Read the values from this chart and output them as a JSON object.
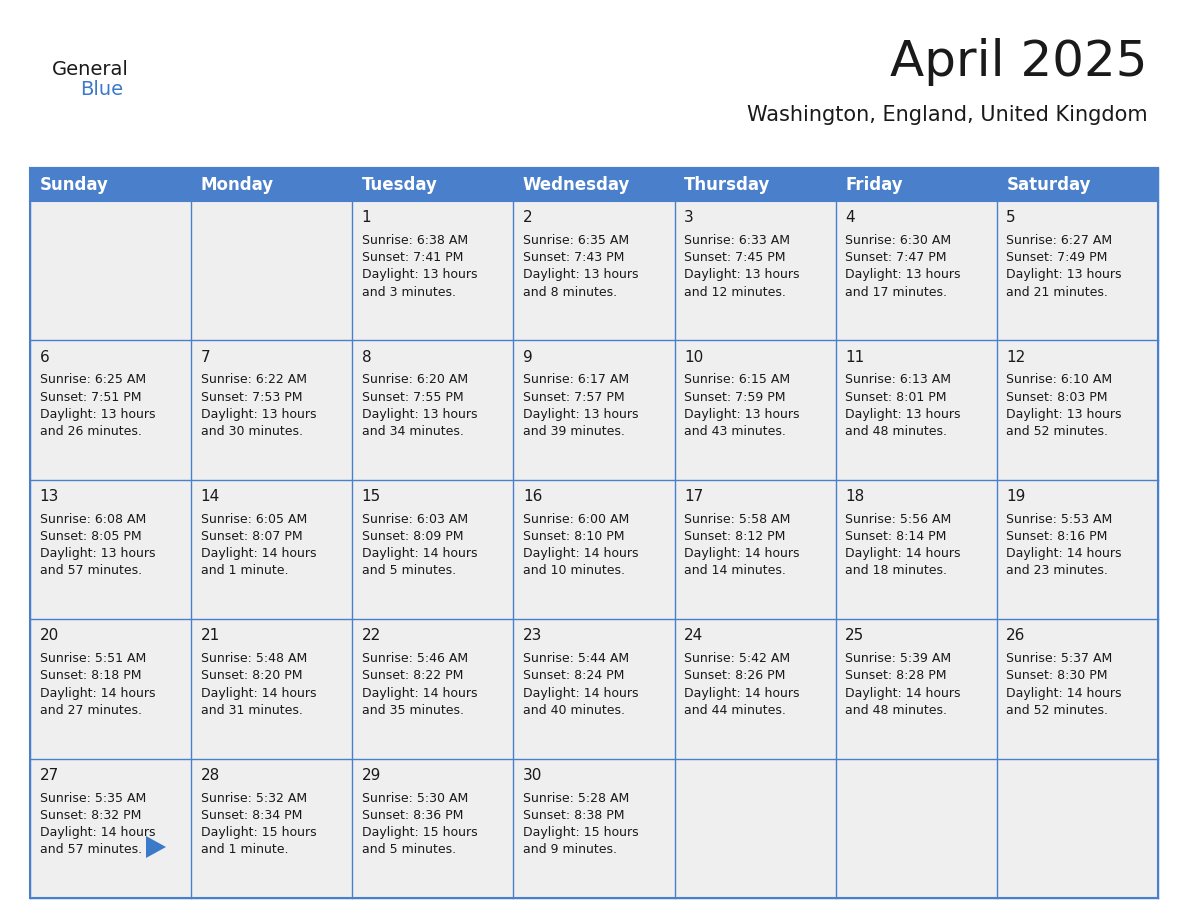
{
  "title": "April 2025",
  "subtitle": "Washington, England, United Kingdom",
  "header_bg": "#4a7fcb",
  "header_text_color": "#FFFFFF",
  "cell_bg": "#EFEFEF",
  "cell_bg_first_row": "#F5F5F5",
  "border_color": "#4a7fcb",
  "days_of_week": [
    "Sunday",
    "Monday",
    "Tuesday",
    "Wednesday",
    "Thursday",
    "Friday",
    "Saturday"
  ],
  "weeks": [
    [
      {
        "day": "",
        "info": ""
      },
      {
        "day": "",
        "info": ""
      },
      {
        "day": "1",
        "info": "Sunrise: 6:38 AM\nSunset: 7:41 PM\nDaylight: 13 hours\nand 3 minutes."
      },
      {
        "day": "2",
        "info": "Sunrise: 6:35 AM\nSunset: 7:43 PM\nDaylight: 13 hours\nand 8 minutes."
      },
      {
        "day": "3",
        "info": "Sunrise: 6:33 AM\nSunset: 7:45 PM\nDaylight: 13 hours\nand 12 minutes."
      },
      {
        "day": "4",
        "info": "Sunrise: 6:30 AM\nSunset: 7:47 PM\nDaylight: 13 hours\nand 17 minutes."
      },
      {
        "day": "5",
        "info": "Sunrise: 6:27 AM\nSunset: 7:49 PM\nDaylight: 13 hours\nand 21 minutes."
      }
    ],
    [
      {
        "day": "6",
        "info": "Sunrise: 6:25 AM\nSunset: 7:51 PM\nDaylight: 13 hours\nand 26 minutes."
      },
      {
        "day": "7",
        "info": "Sunrise: 6:22 AM\nSunset: 7:53 PM\nDaylight: 13 hours\nand 30 minutes."
      },
      {
        "day": "8",
        "info": "Sunrise: 6:20 AM\nSunset: 7:55 PM\nDaylight: 13 hours\nand 34 minutes."
      },
      {
        "day": "9",
        "info": "Sunrise: 6:17 AM\nSunset: 7:57 PM\nDaylight: 13 hours\nand 39 minutes."
      },
      {
        "day": "10",
        "info": "Sunrise: 6:15 AM\nSunset: 7:59 PM\nDaylight: 13 hours\nand 43 minutes."
      },
      {
        "day": "11",
        "info": "Sunrise: 6:13 AM\nSunset: 8:01 PM\nDaylight: 13 hours\nand 48 minutes."
      },
      {
        "day": "12",
        "info": "Sunrise: 6:10 AM\nSunset: 8:03 PM\nDaylight: 13 hours\nand 52 minutes."
      }
    ],
    [
      {
        "day": "13",
        "info": "Sunrise: 6:08 AM\nSunset: 8:05 PM\nDaylight: 13 hours\nand 57 minutes."
      },
      {
        "day": "14",
        "info": "Sunrise: 6:05 AM\nSunset: 8:07 PM\nDaylight: 14 hours\nand 1 minute."
      },
      {
        "day": "15",
        "info": "Sunrise: 6:03 AM\nSunset: 8:09 PM\nDaylight: 14 hours\nand 5 minutes."
      },
      {
        "day": "16",
        "info": "Sunrise: 6:00 AM\nSunset: 8:10 PM\nDaylight: 14 hours\nand 10 minutes."
      },
      {
        "day": "17",
        "info": "Sunrise: 5:58 AM\nSunset: 8:12 PM\nDaylight: 14 hours\nand 14 minutes."
      },
      {
        "day": "18",
        "info": "Sunrise: 5:56 AM\nSunset: 8:14 PM\nDaylight: 14 hours\nand 18 minutes."
      },
      {
        "day": "19",
        "info": "Sunrise: 5:53 AM\nSunset: 8:16 PM\nDaylight: 14 hours\nand 23 minutes."
      }
    ],
    [
      {
        "day": "20",
        "info": "Sunrise: 5:51 AM\nSunset: 8:18 PM\nDaylight: 14 hours\nand 27 minutes."
      },
      {
        "day": "21",
        "info": "Sunrise: 5:48 AM\nSunset: 8:20 PM\nDaylight: 14 hours\nand 31 minutes."
      },
      {
        "day": "22",
        "info": "Sunrise: 5:46 AM\nSunset: 8:22 PM\nDaylight: 14 hours\nand 35 minutes."
      },
      {
        "day": "23",
        "info": "Sunrise: 5:44 AM\nSunset: 8:24 PM\nDaylight: 14 hours\nand 40 minutes."
      },
      {
        "day": "24",
        "info": "Sunrise: 5:42 AM\nSunset: 8:26 PM\nDaylight: 14 hours\nand 44 minutes."
      },
      {
        "day": "25",
        "info": "Sunrise: 5:39 AM\nSunset: 8:28 PM\nDaylight: 14 hours\nand 48 minutes."
      },
      {
        "day": "26",
        "info": "Sunrise: 5:37 AM\nSunset: 8:30 PM\nDaylight: 14 hours\nand 52 minutes."
      }
    ],
    [
      {
        "day": "27",
        "info": "Sunrise: 5:35 AM\nSunset: 8:32 PM\nDaylight: 14 hours\nand 57 minutes."
      },
      {
        "day": "28",
        "info": "Sunrise: 5:32 AM\nSunset: 8:34 PM\nDaylight: 15 hours\nand 1 minute."
      },
      {
        "day": "29",
        "info": "Sunrise: 5:30 AM\nSunset: 8:36 PM\nDaylight: 15 hours\nand 5 minutes."
      },
      {
        "day": "30",
        "info": "Sunrise: 5:28 AM\nSunset: 8:38 PM\nDaylight: 15 hours\nand 9 minutes."
      },
      {
        "day": "",
        "info": ""
      },
      {
        "day": "",
        "info": ""
      },
      {
        "day": "",
        "info": ""
      }
    ]
  ],
  "logo_text1": "General",
  "logo_text2": "Blue",
  "logo_text1_color": "#1a1a1a",
  "logo_text2_color": "#3a7ac8",
  "logo_triangle_color": "#3a7ac8",
  "title_color": "#1a1a1a",
  "subtitle_color": "#1a1a1a",
  "cell_text_color": "#1a1a1a",
  "day_number_color": "#1a1a1a",
  "title_fontsize": 36,
  "subtitle_fontsize": 15,
  "header_fontsize": 12,
  "day_num_fontsize": 11,
  "cell_fontsize": 9
}
